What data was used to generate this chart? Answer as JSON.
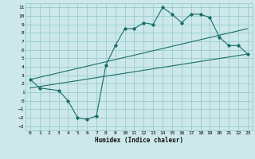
{
  "xlabel": "Humidex (Indice chaleur)",
  "bg_color": "#cce8ea",
  "grid_color": "#99cccc",
  "line_color": "#1a6e6a",
  "xlim": [
    -0.5,
    23.5
  ],
  "ylim": [
    -3.5,
    11.5
  ],
  "xticks": [
    0,
    1,
    2,
    3,
    4,
    5,
    6,
    7,
    8,
    9,
    10,
    11,
    12,
    13,
    14,
    15,
    16,
    17,
    18,
    19,
    20,
    21,
    22,
    23
  ],
  "yticks": [
    -3,
    -2,
    -1,
    0,
    1,
    2,
    3,
    4,
    5,
    6,
    7,
    8,
    9,
    10,
    11
  ],
  "line1_x": [
    0,
    1,
    3,
    4,
    5,
    6,
    7,
    8,
    9,
    10,
    11,
    12,
    13,
    14,
    15,
    16,
    17,
    18,
    19,
    20,
    21,
    22,
    23
  ],
  "line1_y": [
    2.5,
    1.5,
    1.2,
    0.0,
    -2.0,
    -2.2,
    -1.8,
    4.2,
    6.5,
    8.5,
    8.5,
    9.2,
    9.0,
    11.0,
    10.2,
    9.2,
    10.2,
    10.2,
    9.8,
    7.5,
    6.5,
    6.5,
    5.5
  ],
  "line2_x": [
    0,
    23
  ],
  "line2_y": [
    2.5,
    8.5
  ],
  "line3_x": [
    0,
    23
  ],
  "line3_y": [
    1.5,
    5.5
  ]
}
